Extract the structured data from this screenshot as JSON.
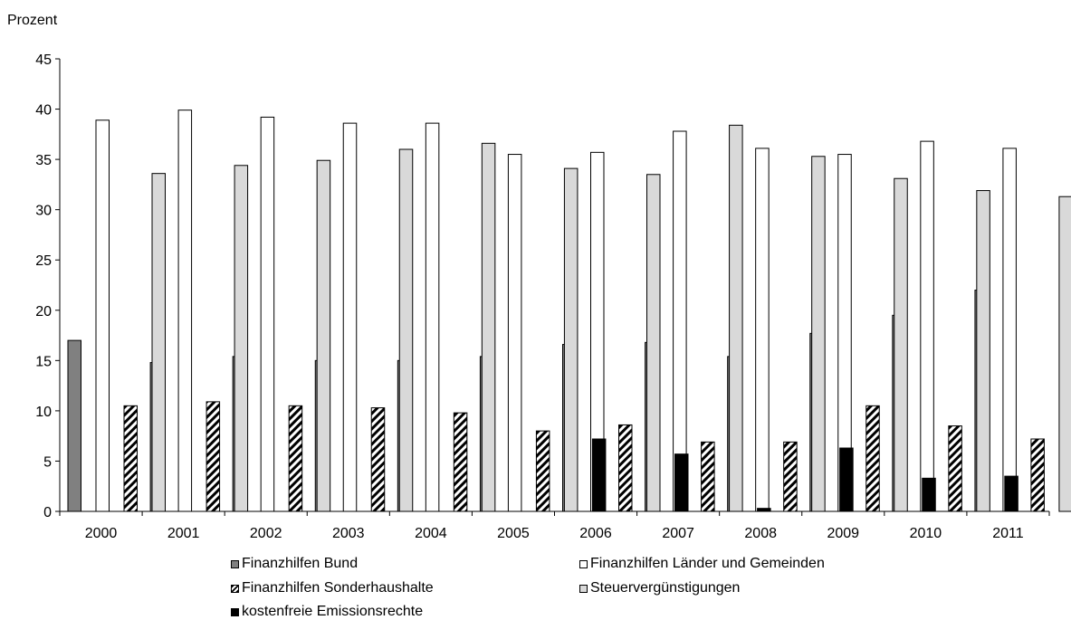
{
  "chart_data": {
    "type": "bar",
    "ylabel": "Prozent",
    "ylim": [
      0,
      45
    ],
    "yticks": [
      0,
      5,
      10,
      15,
      20,
      25,
      30,
      35,
      40,
      45
    ],
    "categories": [
      "2000",
      "2001",
      "2002",
      "2003",
      "2004",
      "2005",
      "2006",
      "2007",
      "2008",
      "2009",
      "2010",
      "2011"
    ],
    "series": [
      {
        "name": "Finanzhilfen Bund",
        "color": "#808080",
        "values": [
          17.0,
          14.8,
          15.4,
          15.0,
          15.0,
          15.4,
          16.6,
          16.8,
          15.4,
          17.7,
          19.5,
          22.0
        ]
      },
      {
        "name": "Finanzhilfen Länder und Gemeinden",
        "color": "#ffffff",
        "values": [
          38.9,
          39.9,
          39.2,
          38.6,
          38.6,
          35.5,
          35.7,
          37.8,
          36.1,
          35.5,
          36.8,
          36.1
        ]
      },
      {
        "name": "Finanzhilfen Sonderhaushalte",
        "color": "hatched",
        "values": [
          10.5,
          10.9,
          10.5,
          10.3,
          9.8,
          8.0,
          8.6,
          6.9,
          6.9,
          10.5,
          8.5,
          7.2
        ]
      },
      {
        "name": "Steuervergünstigungen",
        "color": "#d9d9d9",
        "values": [
          33.6,
          34.4,
          34.9,
          36.0,
          36.6,
          34.1,
          33.5,
          38.4,
          35.3,
          33.1,
          31.9,
          31.3
        ]
      },
      {
        "name": "kostenfreie Emissionsrechte",
        "color": "#000000",
        "values": [
          0,
          0,
          0,
          0,
          0,
          7.2,
          5.7,
          0.3,
          6.3,
          3.3,
          3.5,
          3.4
        ]
      }
    ],
    "legend_position": "bottom",
    "grid": false
  }
}
